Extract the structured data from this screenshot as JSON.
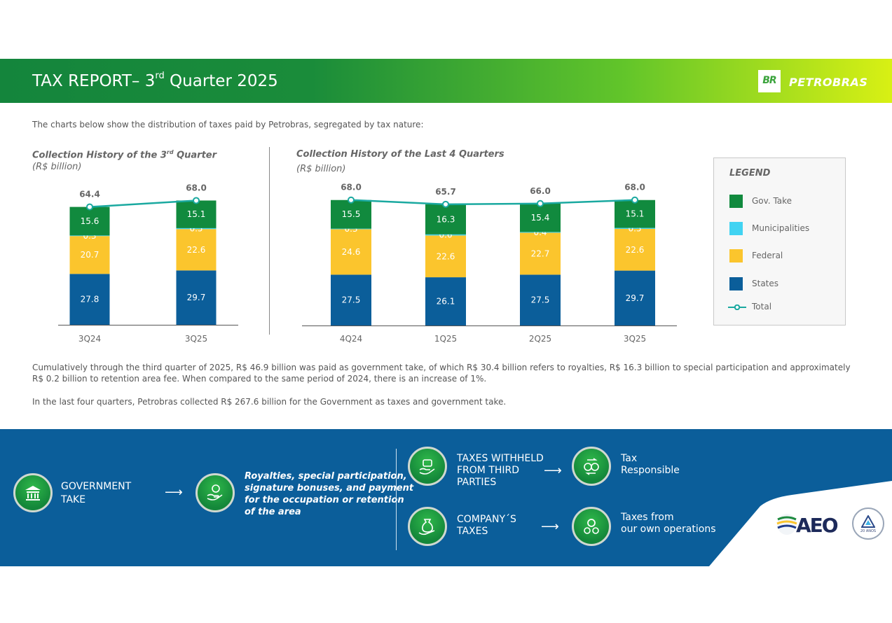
{
  "header": {
    "title_main": "TAX REPORT– 3",
    "title_sup": "rd",
    "title_rest": " Quarter 2025",
    "logo_box": "BR",
    "logo_word": "PETROBRAS"
  },
  "intro": "The charts below show the distribution of taxes paid by Petrobras, segregated by tax nature:",
  "chart_left": {
    "title_main": "Collection History of the 3",
    "title_sup": "rd",
    "title_rest": " Quarter",
    "unit": "(R$ billion)"
  },
  "chart_right": {
    "title": "Collection History of the Last 4 Quarters",
    "unit": "(R$ billion)"
  },
  "chart_data": [
    {
      "type": "bar",
      "stacked": true,
      "title": "Collection History of the 3rd Quarter",
      "ylabel": "R$ billion",
      "categories": [
        "3Q24",
        "3Q25"
      ],
      "series": [
        {
          "name": "States",
          "values": [
            27.8,
            29.7
          ]
        },
        {
          "name": "Federal",
          "values": [
            20.7,
            22.6
          ]
        },
        {
          "name": "Municipalities",
          "values": [
            0.3,
            0.5
          ]
        },
        {
          "name": "Gov. Take",
          "values": [
            15.6,
            15.1
          ]
        },
        {
          "name": "Total",
          "values": [
            64.4,
            68.0
          ],
          "kind": "line"
        }
      ],
      "ylim": [
        0,
        70
      ]
    },
    {
      "type": "bar",
      "stacked": true,
      "title": "Collection History of the Last 4 Quarters",
      "ylabel": "R$ billion",
      "categories": [
        "4Q24",
        "1Q25",
        "2Q25",
        "3Q25"
      ],
      "series": [
        {
          "name": "States",
          "values": [
            27.5,
            26.1,
            27.5,
            29.7
          ]
        },
        {
          "name": "Federal",
          "values": [
            24.6,
            22.6,
            22.7,
            22.6
          ]
        },
        {
          "name": "Municipalities",
          "values": [
            0.3,
            0.6,
            0.4,
            0.5
          ]
        },
        {
          "name": "Gov. Take",
          "values": [
            15.5,
            16.3,
            15.4,
            15.1
          ]
        },
        {
          "name": "Total",
          "values": [
            68.0,
            65.7,
            66.0,
            68.0
          ],
          "kind": "line"
        }
      ],
      "ylim": [
        0,
        70
      ]
    }
  ],
  "colors": {
    "States": "#0b5e9a",
    "Federal": "#fbc52d",
    "Municipalities": "#41d3f2",
    "Gov. Take": "#118a3e",
    "Total": "#1aa9a0"
  },
  "legend": {
    "title": "LEGEND",
    "items": [
      {
        "label": "Gov. Take",
        "key": "Gov. Take"
      },
      {
        "label": "Municipalities",
        "key": "Municipalities"
      },
      {
        "label": "Federal",
        "key": "Federal"
      },
      {
        "label": "States",
        "key": "States"
      },
      {
        "label": "Total",
        "key": "Total"
      }
    ]
  },
  "paragraphs": {
    "p1": "Cumulatively through the third quarter of 2025, R$ 46.9 billion was paid as government take, of which R$ 30.4 billion refers to royalties, R$ 16.3 billion to special participation and approximately R$ 0.2 billion to retention area fee. When compared to the same period of 2024, there is an increase of 1%.",
    "p2": "In the last four quarters, Petrobras collected R$ 267.6 billion for the Government as taxes and government take."
  },
  "band": {
    "gov_take_line1": "GOVERNMENT",
    "gov_take_line2": "TAKE",
    "gov_desc_1": "Royalties, special participation,",
    "gov_desc_2": "signature bonuses, and payment",
    "gov_desc_3": "for the occupation or retention",
    "gov_desc_4": "of the area",
    "withheld_1": "TAXES WITHHELD",
    "withheld_2": "FROM THIRD",
    "withheld_3": "PARTIES",
    "responsible_1": "Tax",
    "responsible_2": "Responsible",
    "company_1": "COMPANY´S",
    "company_2": "TAXES",
    "own_1": "Taxes from",
    "own_2": "our own operations",
    "arrow": "⟶",
    "aeo": "AEO",
    "seal": "20 ANOS"
  }
}
